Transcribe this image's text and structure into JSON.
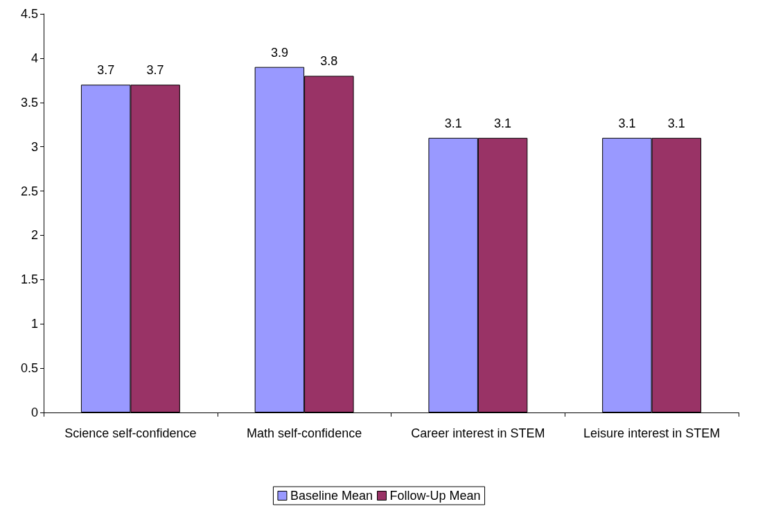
{
  "chart_data": {
    "type": "bar",
    "categories": [
      "Science self-confidence",
      "Math self-confidence",
      "Career interest in STEM",
      "Leisure interest in STEM"
    ],
    "series": [
      {
        "name": "Baseline Mean",
        "color": "#9999ff",
        "values": [
          3.7,
          3.9,
          3.1,
          3.1
        ]
      },
      {
        "name": "Follow-Up Mean",
        "color": "#993366",
        "values": [
          3.7,
          3.8,
          3.1,
          3.1
        ]
      }
    ],
    "ylim": [
      0,
      4.5
    ],
    "yticks": [
      0,
      0.5,
      1,
      1.5,
      2,
      2.5,
      3,
      3.5,
      4,
      4.5
    ],
    "grid": false,
    "legend": "bottom",
    "data_labels": true
  }
}
